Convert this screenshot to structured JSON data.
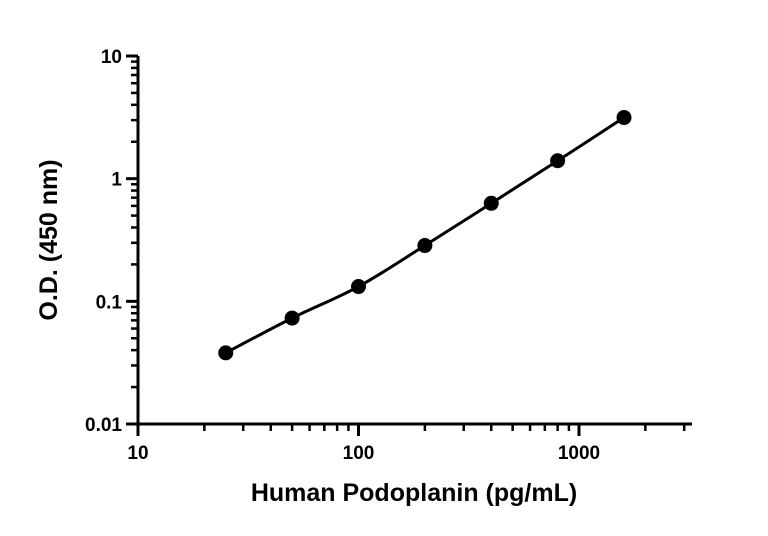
{
  "chart_data": {
    "type": "scatter",
    "title": "",
    "xlabel": "Human Podoplanin (pg/mL)",
    "ylabel": "O.D. (450 nm)",
    "xscale": "log",
    "yscale": "log",
    "xlim": [
      10,
      3000
    ],
    "ylim": [
      0.01,
      10
    ],
    "grid": false,
    "legend": "none",
    "x_tick_labels": [
      "10",
      "100",
      "1000"
    ],
    "y_tick_labels": [
      "0.01",
      "0.1",
      "1",
      "10"
    ],
    "series": [
      {
        "x": [
          25,
          50,
          100,
          200,
          400,
          800,
          1600
        ],
        "y": [
          0.038,
          0.073,
          0.132,
          0.285,
          0.63,
          1.4,
          3.15
        ],
        "marker": "circle",
        "fit_line": true,
        "color": "#000000"
      }
    ]
  }
}
